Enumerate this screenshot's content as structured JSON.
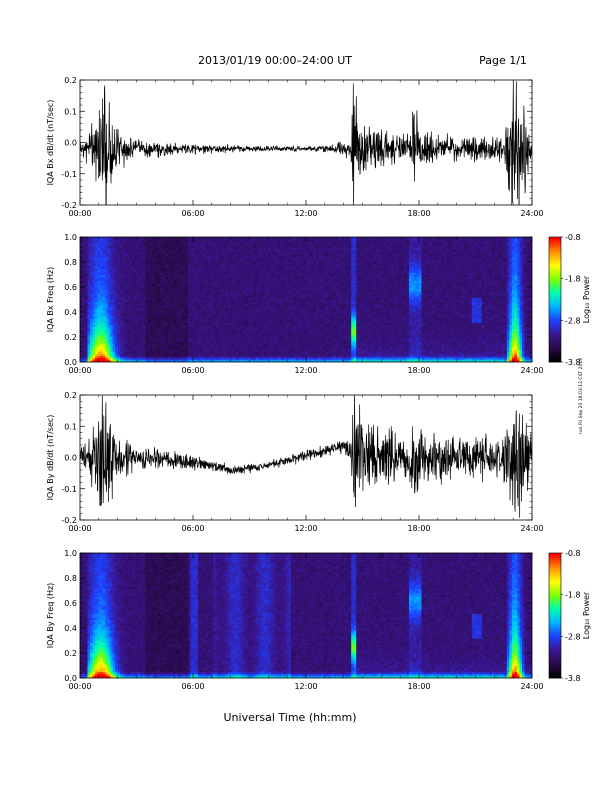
{
  "header": {
    "title": "2013/01/19  00:00–24:00 UT",
    "page": "Page 1/1"
  },
  "footer": {
    "xlabel": "Universal Time (hh:mm)"
  },
  "side_note": "run Fri Sep 20 18:03:12 CST 2019",
  "colors": {
    "colormap": [
      "#000000",
      "#2a0a4a",
      "#3a1690",
      "#1e40ff",
      "#00b4ff",
      "#00ffb0",
      "#7cff00",
      "#ffff00",
      "#ff9000",
      "#ff0000"
    ]
  },
  "chart_data": [
    {
      "type": "line",
      "ylabel": "IQA Bx dB/dt (nT/sec)",
      "xlim": [
        0,
        24
      ],
      "ylim": [
        -0.2,
        0.2
      ],
      "xticks": [
        "00:00",
        "06:00",
        "12:00",
        "18:00",
        "24:00"
      ],
      "yticks": [
        "-0.2",
        "-0.1",
        "0.0",
        "0.1",
        "0.2"
      ],
      "baseline": -0.02,
      "envelope": [
        {
          "x": 0.0,
          "amp": 0.03
        },
        {
          "x": 0.8,
          "amp": 0.1
        },
        {
          "x": 1.0,
          "amp": 0.25
        },
        {
          "x": 1.3,
          "amp": 0.25
        },
        {
          "x": 1.8,
          "amp": 0.07
        },
        {
          "x": 3.0,
          "amp": 0.03
        },
        {
          "x": 5.0,
          "amp": 0.02
        },
        {
          "x": 7.0,
          "amp": 0.015
        },
        {
          "x": 9.0,
          "amp": 0.01
        },
        {
          "x": 12.0,
          "amp": 0.008
        },
        {
          "x": 13.5,
          "amp": 0.015
        },
        {
          "x": 14.4,
          "amp": 0.04
        },
        {
          "x": 14.5,
          "amp": 0.25
        },
        {
          "x": 14.8,
          "amp": 0.12
        },
        {
          "x": 16.0,
          "amp": 0.07
        },
        {
          "x": 17.6,
          "amp": 0.05
        },
        {
          "x": 17.7,
          "amp": 0.2
        },
        {
          "x": 18.0,
          "amp": 0.06
        },
        {
          "x": 20.0,
          "amp": 0.04
        },
        {
          "x": 22.5,
          "amp": 0.04
        },
        {
          "x": 23.0,
          "amp": 0.25
        },
        {
          "x": 23.4,
          "amp": 0.25
        },
        {
          "x": 24.0,
          "amp": 0.04
        }
      ]
    },
    {
      "type": "heatmap",
      "ylabel": "IQA Bx Freq (Hz)",
      "xlim": [
        0,
        24
      ],
      "ylim": [
        0,
        1
      ],
      "xticks": [
        "00:00",
        "06:00",
        "12:00",
        "18:00",
        "24:00"
      ],
      "yticks": [
        "0.0",
        "0.2",
        "0.4",
        "0.6",
        "0.8",
        "1.0"
      ],
      "colorbar": {
        "label": "Log₁₀ Power",
        "range": [
          -3.8,
          -0.8
        ],
        "ticks": [
          "-0.8",
          "-1.8",
          "-2.8",
          "-3.8"
        ]
      }
    },
    {
      "type": "line",
      "ylabel": "IQA By dB/dt (nT/sec)",
      "xlim": [
        0,
        24
      ],
      "ylim": [
        -0.2,
        0.2
      ],
      "xticks": [
        "00:00",
        "06:00",
        "12:00",
        "18:00",
        "24:00"
      ],
      "yticks": [
        "-0.2",
        "-0.1",
        "0.0",
        "0.1",
        "0.2"
      ],
      "baseline_track": [
        {
          "x": 0.0,
          "y": 0.0
        },
        {
          "x": 4.0,
          "y": 0.0
        },
        {
          "x": 6.0,
          "y": -0.02
        },
        {
          "x": 8.0,
          "y": -0.04
        },
        {
          "x": 9.5,
          "y": -0.03
        },
        {
          "x": 11.0,
          "y": -0.01
        },
        {
          "x": 13.0,
          "y": 0.02
        },
        {
          "x": 14.0,
          "y": 0.04
        },
        {
          "x": 16.0,
          "y": 0.0
        },
        {
          "x": 24.0,
          "y": 0.0
        }
      ],
      "envelope": [
        {
          "x": 0.0,
          "amp": 0.03
        },
        {
          "x": 0.7,
          "amp": 0.1
        },
        {
          "x": 0.9,
          "amp": 0.25
        },
        {
          "x": 1.4,
          "amp": 0.25
        },
        {
          "x": 2.0,
          "amp": 0.08
        },
        {
          "x": 3.0,
          "amp": 0.04
        },
        {
          "x": 5.0,
          "amp": 0.03
        },
        {
          "x": 7.0,
          "amp": 0.02
        },
        {
          "x": 10.0,
          "amp": 0.015
        },
        {
          "x": 13.5,
          "amp": 0.02
        },
        {
          "x": 14.4,
          "amp": 0.05
        },
        {
          "x": 14.5,
          "amp": 0.22
        },
        {
          "x": 14.9,
          "amp": 0.13
        },
        {
          "x": 16.0,
          "amp": 0.1
        },
        {
          "x": 17.6,
          "amp": 0.08
        },
        {
          "x": 17.7,
          "amp": 0.22
        },
        {
          "x": 18.0,
          "amp": 0.1
        },
        {
          "x": 20.0,
          "amp": 0.07
        },
        {
          "x": 22.5,
          "amp": 0.08
        },
        {
          "x": 23.0,
          "amp": 0.25
        },
        {
          "x": 23.4,
          "amp": 0.25
        },
        {
          "x": 24.0,
          "amp": 0.07
        }
      ]
    },
    {
      "type": "heatmap",
      "ylabel": "IQA By Freq (Hz)",
      "xlim": [
        0,
        24
      ],
      "ylim": [
        0,
        1
      ],
      "xticks": [
        "00:00",
        "06:00",
        "12:00",
        "18:00",
        "24:00"
      ],
      "yticks": [
        "0.0",
        "0.2",
        "0.4",
        "0.6",
        "0.8",
        "1.0"
      ],
      "colorbar": {
        "label": "Log₁₀ Power",
        "range": [
          -3.8,
          -0.8
        ],
        "ticks": [
          "-0.8",
          "-1.8",
          "-2.8",
          "-3.8"
        ]
      }
    }
  ]
}
